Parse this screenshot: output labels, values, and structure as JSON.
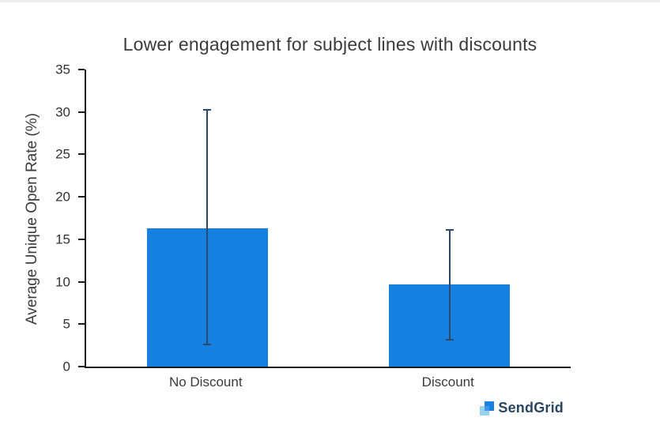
{
  "chart_data": {
    "type": "bar",
    "title": "Lower engagement for subject lines with discounts",
    "xlabel": "",
    "ylabel": "Average Unique Open Rate (%)",
    "categories": [
      "No Discount",
      "Discount"
    ],
    "values": [
      16.3,
      9.7
    ],
    "error_low": [
      2.6,
      3.2
    ],
    "error_high": [
      30.3,
      16.1
    ],
    "ylim": [
      0,
      35
    ],
    "yticks": [
      0,
      5,
      10,
      15,
      20,
      25,
      30,
      35
    ],
    "grid": false,
    "legend": false,
    "bar_color": "#1580e0",
    "error_color": "#2b4a6b"
  },
  "brand": {
    "name": "SendGrid"
  }
}
